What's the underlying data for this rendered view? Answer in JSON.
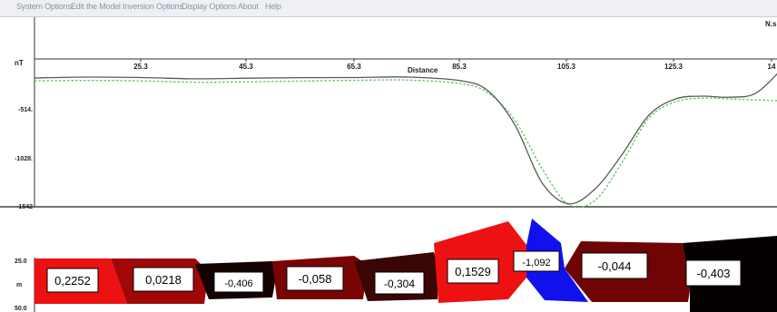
{
  "menu": [
    "System Options",
    "Edit the Model",
    "Inversion Options",
    "Display Options",
    "About",
    "Help"
  ],
  "profile": {
    "unit_label": "nT",
    "axis_title": "Distance",
    "corner_label": "N.s",
    "x_ticks": [
      "25.3",
      "45.3",
      "65.3",
      "85.3",
      "105.3",
      "125.3",
      "14"
    ],
    "y_ticks": [
      "-514.",
      "-1028.",
      "-1542"
    ],
    "observed_color": "#5fbf5f",
    "calculated_color": "#5a5a5a"
  },
  "section": {
    "depth_unit": "m",
    "depth_ticks": [
      "25.0",
      "50.0"
    ],
    "bodies": [
      {
        "value": "0,2252",
        "color": "#ee1111"
      },
      {
        "value": "0,0218",
        "color": "#a00808"
      },
      {
        "value": "-0,406",
        "color": "#150303"
      },
      {
        "value": "-0,058",
        "color": "#7a0404"
      },
      {
        "value": "-0,304",
        "color": "#3a0505"
      },
      {
        "value": "0,1529",
        "color": "#ee1111"
      },
      {
        "value": "-1,092",
        "color": "#1111ee"
      },
      {
        "value": "-0,044",
        "color": "#6e0404"
      },
      {
        "value": "-0,403",
        "color": "#050000"
      }
    ]
  },
  "chart_data": {
    "type": "line",
    "xlabel": "Distance",
    "ylabel": "nT",
    "ylim": [
      -1542,
      0
    ],
    "x": [
      0,
      10,
      20,
      30,
      40,
      50,
      60,
      70,
      80,
      85,
      90,
      95,
      100,
      105,
      110,
      115,
      120,
      125,
      130,
      135,
      140
    ],
    "series": [
      {
        "values": [
          -200,
          -190,
          -195,
          -208,
          -202,
          -196,
          -195,
          -190,
          -230,
          -340,
          -700,
          -1300,
          -1520,
          -1360,
          -1000,
          -590,
          -420,
          -390,
          -402,
          -360,
          -100
        ]
      },
      {
        "values": [
          -230,
          -225,
          -230,
          -245,
          -240,
          -232,
          -224,
          -222,
          -260,
          -360,
          -650,
          -1150,
          -1530,
          -1480,
          -1080,
          -620,
          -450,
          -410,
          -420,
          -430,
          -440
        ]
      }
    ]
  }
}
